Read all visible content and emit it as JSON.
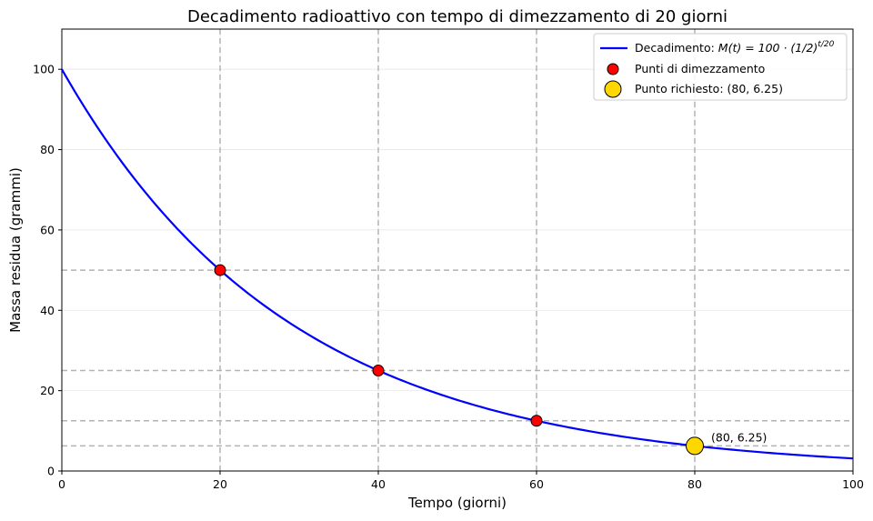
{
  "chart_data": {
    "type": "line",
    "title": "Decadimento radioattivo con tempo di dimezzamento di 20 giorni",
    "xlabel": "Tempo (giorni)",
    "ylabel": "Massa residua (grammi)",
    "xlim": [
      0,
      100
    ],
    "ylim": [
      0,
      110
    ],
    "xticks": [
      0,
      20,
      40,
      60,
      80,
      100
    ],
    "yticks": [
      0,
      20,
      40,
      60,
      80,
      100
    ],
    "half_life": 20,
    "initial_mass": 100,
    "curve_color": "#0000ff",
    "halving_points": [
      {
        "x": 20,
        "y": 50
      },
      {
        "x": 40,
        "y": 25
      },
      {
        "x": 60,
        "y": 12.5
      }
    ],
    "halving_color": "#ff0000",
    "highlight_point": {
      "x": 80,
      "y": 6.25,
      "label": "(80, 6.25)"
    },
    "highlight_color": "#ffd700",
    "reference_vlines": [
      20,
      40,
      60,
      80
    ],
    "reference_hlines": [
      50,
      25,
      12.5,
      6.25
    ],
    "legend": {
      "placement": "top-right",
      "decay_label_prefix": "Decadimento: ",
      "decay_formula_main": "M(t) = 100 · (1/2)",
      "decay_formula_exp": "t/20",
      "halving_label": "Punti di dimezzamento",
      "highlight_label": "Punto richiesto: (80, 6.25)"
    }
  }
}
